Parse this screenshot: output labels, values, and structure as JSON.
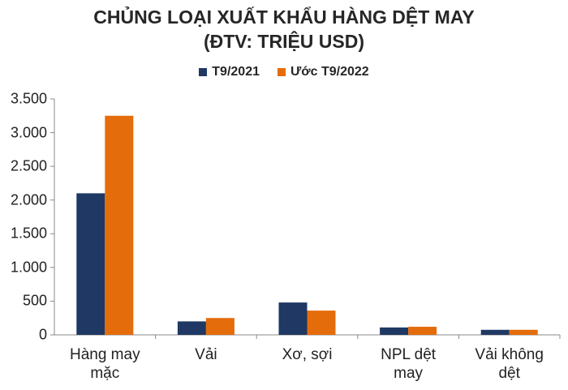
{
  "chart_data": {
    "type": "bar",
    "title": "CHỦNG LOẠI XUẤT KHẨU HÀNG DỆT MAY",
    "subtitle": "(ĐTV: TRIỆU USD)",
    "categories": [
      "Hàng may mặc",
      "Vải",
      "Xơ, sợi",
      "NPL dệt may",
      "Vải không dệt"
    ],
    "series": [
      {
        "name": "T9/2021",
        "color": "#1f3864",
        "values": [
          2100,
          200,
          480,
          110,
          75
        ]
      },
      {
        "name": "Ước T9/2022",
        "color": "#e46c0a",
        "values": [
          3250,
          250,
          360,
          120,
          75
        ]
      }
    ],
    "ylim": [
      0,
      3500
    ],
    "yticks": [
      0,
      500,
      {
        "value": 1000,
        "label": "1.000"
      },
      {
        "value": 1500,
        "label": "1.500"
      },
      {
        "value": 2000,
        "label": "2.000"
      },
      {
        "value": 2500,
        "label": "2.500"
      },
      {
        "value": 3000,
        "label": "3.000"
      },
      {
        "value": 3500,
        "label": "3.500"
      }
    ],
    "grid": false,
    "legend": "top"
  }
}
